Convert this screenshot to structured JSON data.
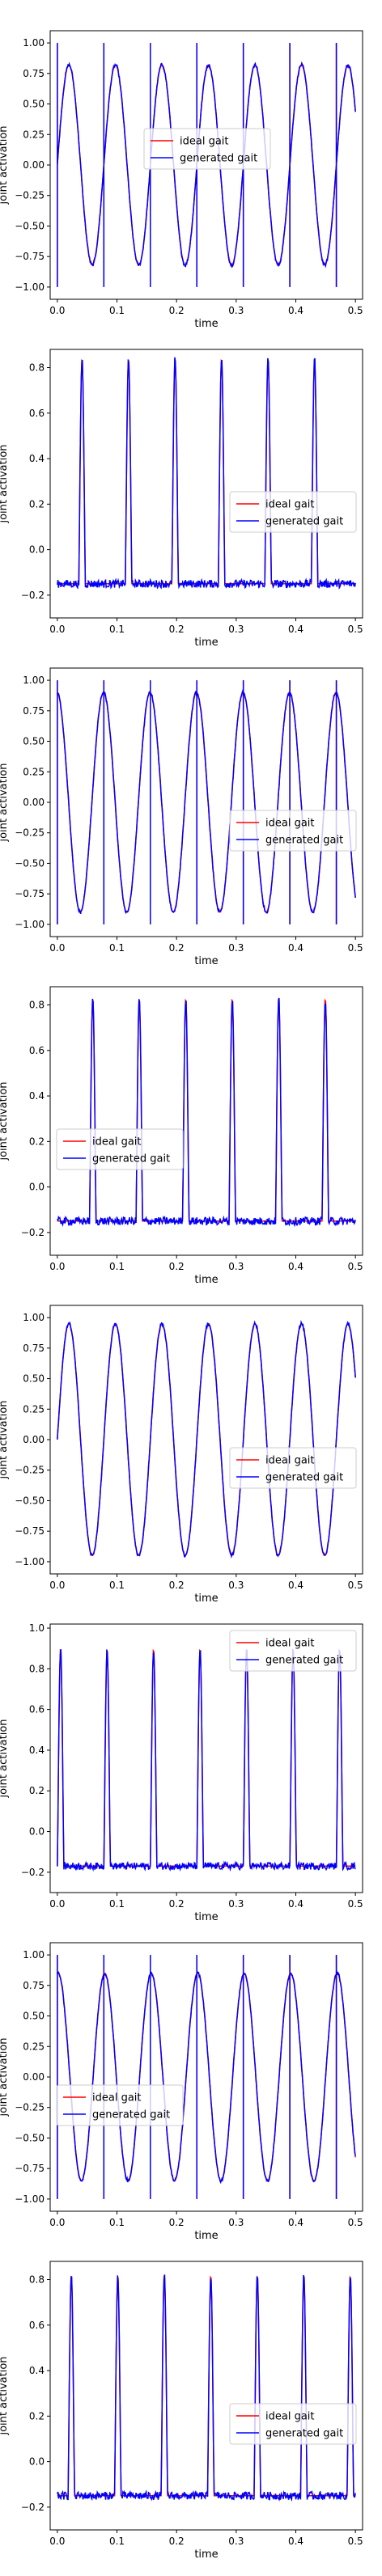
{
  "chart_data": [
    {
      "type": "line",
      "xlabel": "time",
      "ylabel": "joint activation",
      "xlim": [
        -0.012,
        0.512
      ],
      "ylim": [
        -1.1,
        1.1
      ],
      "xticks": [
        0.0,
        0.1,
        0.2,
        0.3,
        0.4,
        0.5
      ],
      "xtick_labels": [
        "0.0",
        "0.1",
        "0.2",
        "0.3",
        "0.4",
        "0.5"
      ],
      "yticks": [
        -1.0,
        -0.75,
        -0.5,
        -0.25,
        0.0,
        0.25,
        0.5,
        0.75,
        1.0
      ],
      "ytick_labels": [
        "−1.00",
        "−0.75",
        "−0.50",
        "−0.25",
        "0.00",
        "0.25",
        "0.50",
        "0.75",
        "1.00"
      ],
      "legend": "center",
      "waveform": "sine",
      "period": 0.078,
      "phase": 0.0,
      "amplitude": 0.82,
      "spikes": [
        0.0,
        0.078,
        0.156,
        0.234,
        0.312,
        0.39,
        0.468
      ],
      "series": [
        {
          "name": "ideal gait",
          "color": "#ff0000"
        },
        {
          "name": "generated gait",
          "color": "#0000ff"
        }
      ]
    },
    {
      "type": "line",
      "xlabel": "time",
      "ylabel": "joint activation",
      "xlim": [
        -0.012,
        0.512
      ],
      "ylim": [
        -0.3,
        0.88
      ],
      "xticks": [
        0.0,
        0.1,
        0.2,
        0.3,
        0.4,
        0.5
      ],
      "xtick_labels": [
        "0.0",
        "0.1",
        "0.2",
        "0.3",
        "0.4",
        "0.5"
      ],
      "yticks": [
        -0.2,
        0.0,
        0.2,
        0.4,
        0.6,
        0.8
      ],
      "ytick_labels": [
        "−0.2",
        "0.0",
        "0.2",
        "0.4",
        "0.6",
        "0.8"
      ],
      "legend": "center-right",
      "waveform": "pulse",
      "period": 0.078,
      "phase": 0.036,
      "baseline": -0.15,
      "peak": 0.84,
      "series": [
        {
          "name": "ideal gait",
          "color": "#ff0000"
        },
        {
          "name": "generated gait",
          "color": "#0000ff"
        }
      ]
    },
    {
      "type": "line",
      "xlabel": "time",
      "ylabel": "joint activation",
      "xlim": [
        -0.012,
        0.512
      ],
      "ylim": [
        -1.1,
        1.1
      ],
      "xticks": [
        0.0,
        0.1,
        0.2,
        0.3,
        0.4,
        0.5
      ],
      "xtick_labels": [
        "0.0",
        "0.1",
        "0.2",
        "0.3",
        "0.4",
        "0.5"
      ],
      "yticks": [
        -1.0,
        -0.75,
        -0.5,
        -0.25,
        0.0,
        0.25,
        0.5,
        0.75,
        1.0
      ],
      "ytick_labels": [
        "−1.00",
        "−0.75",
        "−0.50",
        "−0.25",
        "0.00",
        "0.25",
        "0.50",
        "0.75",
        "1.00"
      ],
      "legend": "center-right",
      "waveform": "sine",
      "period": 0.078,
      "phase": 0.058,
      "amplitude": 0.9,
      "spikes": [
        0.0,
        0.078,
        0.156,
        0.234,
        0.312,
        0.39,
        0.468
      ],
      "series": [
        {
          "name": "ideal gait",
          "color": "#ff0000"
        },
        {
          "name": "generated gait",
          "color": "#0000ff"
        }
      ]
    },
    {
      "type": "line",
      "xlabel": "time",
      "ylabel": "joint activation",
      "xlim": [
        -0.012,
        0.512
      ],
      "ylim": [
        -0.3,
        0.88
      ],
      "xticks": [
        0.0,
        0.1,
        0.2,
        0.3,
        0.4,
        0.5
      ],
      "xtick_labels": [
        "0.0",
        "0.1",
        "0.2",
        "0.3",
        "0.4",
        "0.5"
      ],
      "yticks": [
        -0.2,
        0.0,
        0.2,
        0.4,
        0.6,
        0.8
      ],
      "ytick_labels": [
        "−0.2",
        "0.0",
        "0.2",
        "0.4",
        "0.6",
        "0.8"
      ],
      "legend": "center-left",
      "waveform": "pulse",
      "period": 0.078,
      "phase": 0.054,
      "baseline": -0.15,
      "peak": 0.83,
      "series": [
        {
          "name": "ideal gait",
          "color": "#ff0000"
        },
        {
          "name": "generated gait",
          "color": "#0000ff"
        }
      ]
    },
    {
      "type": "line",
      "xlabel": "time",
      "ylabel": "joint activation",
      "xlim": [
        -0.012,
        0.512
      ],
      "ylim": [
        -1.1,
        1.1
      ],
      "xticks": [
        0.0,
        0.1,
        0.2,
        0.3,
        0.4,
        0.5
      ],
      "xtick_labels": [
        "0.0",
        "0.1",
        "0.2",
        "0.3",
        "0.4",
        "0.5"
      ],
      "yticks": [
        -1.0,
        -0.75,
        -0.5,
        -0.25,
        0.0,
        0.25,
        0.5,
        0.75,
        1.0
      ],
      "ytick_labels": [
        "−1.00",
        "−0.75",
        "−0.50",
        "−0.25",
        "0.00",
        "0.25",
        "0.50",
        "0.75",
        "1.00"
      ],
      "legend": "center-right",
      "waveform": "sine",
      "period": 0.078,
      "phase": 0.0,
      "amplitude": 0.95,
      "spikes": [],
      "series": [
        {
          "name": "ideal gait",
          "color": "#ff0000"
        },
        {
          "name": "generated gait",
          "color": "#0000ff"
        }
      ]
    },
    {
      "type": "line",
      "xlabel": "time",
      "ylabel": "joint activation",
      "xlim": [
        -0.012,
        0.512
      ],
      "ylim": [
        -0.3,
        1.02
      ],
      "xticks": [
        0.0,
        0.1,
        0.2,
        0.3,
        0.4,
        0.5
      ],
      "xtick_labels": [
        "0.0",
        "0.1",
        "0.2",
        "0.3",
        "0.4",
        "0.5"
      ],
      "yticks": [
        -0.2,
        0.0,
        0.2,
        0.4,
        0.6,
        0.8,
        1.0
      ],
      "ytick_labels": [
        "−0.2",
        "0.0",
        "0.2",
        "0.4",
        "0.6",
        "0.8",
        "1.0"
      ],
      "legend": "top-right",
      "waveform": "pulse",
      "period": 0.078,
      "phase": 0.0,
      "baseline": -0.17,
      "peak": 0.9,
      "series": [
        {
          "name": "ideal gait",
          "color": "#ff0000"
        },
        {
          "name": "generated gait",
          "color": "#0000ff"
        }
      ]
    },
    {
      "type": "line",
      "xlabel": "time",
      "ylabel": "joint activation",
      "xlim": [
        -0.012,
        0.512
      ],
      "ylim": [
        -1.1,
        1.1
      ],
      "xticks": [
        0.0,
        0.1,
        0.2,
        0.3,
        0.4,
        0.5
      ],
      "xtick_labels": [
        "0.0",
        "0.1",
        "0.2",
        "0.3",
        "0.4",
        "0.5"
      ],
      "yticks": [
        -1.0,
        -0.75,
        -0.5,
        -0.25,
        0.0,
        0.25,
        0.5,
        0.75,
        1.0
      ],
      "ytick_labels": [
        "−1.00",
        "−0.75",
        "−0.50",
        "−0.25",
        "0.00",
        "0.25",
        "0.50",
        "0.75",
        "1.00"
      ],
      "legend": "center-left",
      "waveform": "sine",
      "period": 0.078,
      "phase": 0.06,
      "amplitude": 0.85,
      "spikes": [
        0.0,
        0.078,
        0.156,
        0.234,
        0.312,
        0.39,
        0.468
      ],
      "series": [
        {
          "name": "ideal gait",
          "color": "#ff0000"
        },
        {
          "name": "generated gait",
          "color": "#0000ff"
        }
      ]
    },
    {
      "type": "line",
      "xlabel": "time",
      "ylabel": "joint activation",
      "xlim": [
        -0.012,
        0.512
      ],
      "ylim": [
        -0.3,
        0.88
      ],
      "xticks": [
        0.0,
        0.1,
        0.2,
        0.3,
        0.4,
        0.5
      ],
      "xtick_labels": [
        "0.0",
        "0.1",
        "0.2",
        "0.3",
        "0.4",
        "0.5"
      ],
      "yticks": [
        -0.2,
        0.0,
        0.2,
        0.4,
        0.6,
        0.8
      ],
      "ytick_labels": [
        "−0.2",
        "0.0",
        "0.2",
        "0.4",
        "0.6",
        "0.8"
      ],
      "legend": "center-right",
      "waveform": "pulse",
      "period": 0.078,
      "phase": 0.018,
      "baseline": -0.15,
      "peak": 0.82,
      "series": [
        {
          "name": "ideal gait",
          "color": "#ff0000"
        },
        {
          "name": "generated gait",
          "color": "#0000ff"
        }
      ]
    }
  ]
}
